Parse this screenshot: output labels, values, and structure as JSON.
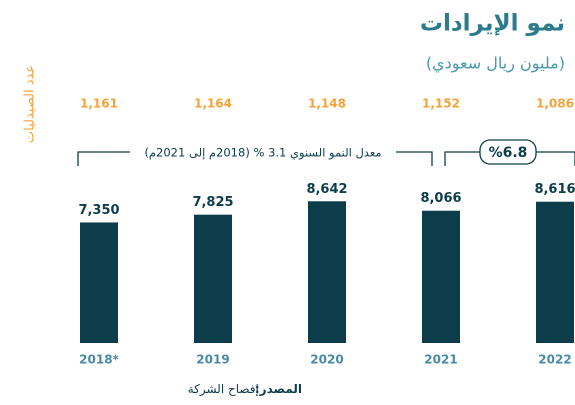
{
  "chart_data": {
    "type": "bar",
    "title": "نمو الإيرادات",
    "subtitle": "(مليون ريال سعودي)",
    "categories": [
      "2018*",
      "2019",
      "2020",
      "2021",
      "2022"
    ],
    "values": [
      7350,
      7825,
      8642,
      8066,
      8616
    ],
    "value_labels": [
      "7,350",
      "7,825",
      "8,642",
      "8,066",
      "8,616"
    ],
    "color": "#0d3d4a",
    "ylim": [
      0,
      10000
    ],
    "pharmacies": {
      "name": "عدد الصيدليات",
      "color": "#f4a23a",
      "values": [
        1161,
        1164,
        1148,
        1152,
        1086
      ],
      "value_labels": [
        "1,161",
        "1,164",
        "1,148",
        "1,152",
        "1,086"
      ]
    },
    "annotations": [
      "معدل النمو السنوي 3.1 % (2018م إلى 2021م)",
      "%6.8"
    ],
    "source_label": "المصدر:",
    "source_text": "إفصاح الشركة"
  }
}
